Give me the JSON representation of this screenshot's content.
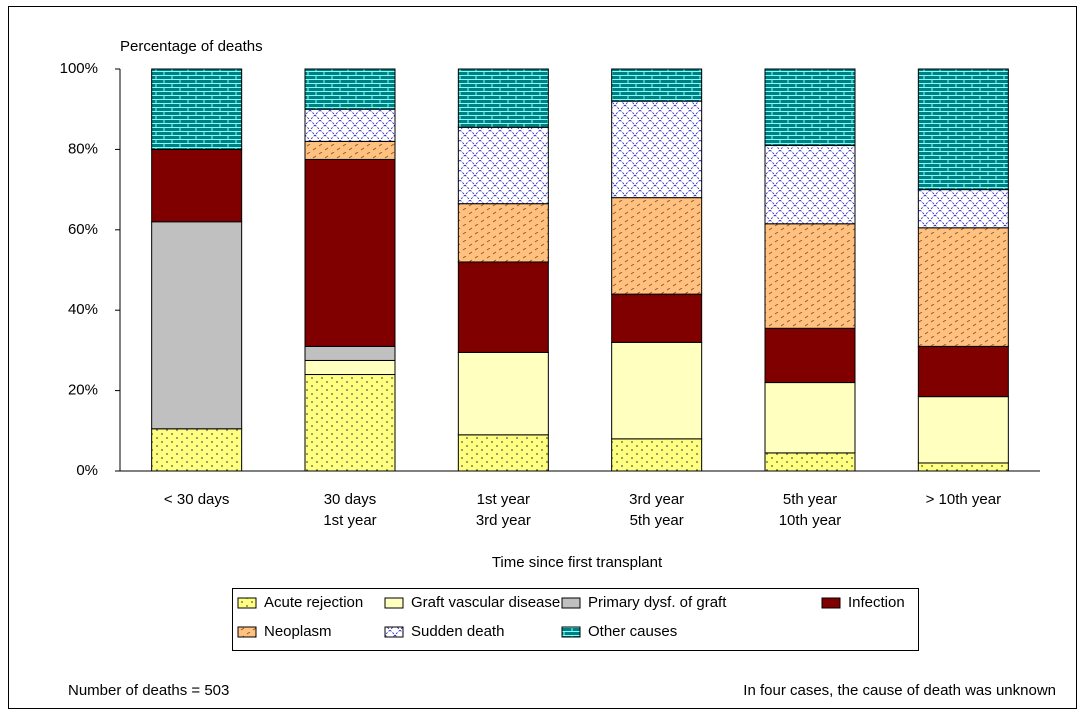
{
  "chart_data": {
    "type": "stacked_bar",
    "y_label": "Percentage of deaths",
    "x_label": "Time since first transplant",
    "categories": [
      [
        "< 30 days"
      ],
      [
        "30 days",
        "1st year"
      ],
      [
        "1st year",
        "3rd year"
      ],
      [
        "3rd year",
        "5th year"
      ],
      [
        "5th year",
        "10th year"
      ],
      [
        "> 10th year"
      ]
    ],
    "series": [
      {
        "name": "Acute rejection",
        "color": "#ffff80",
        "pattern": "dots",
        "values": [
          10.5,
          24,
          9,
          8,
          4.5,
          2
        ]
      },
      {
        "name": "Graft vascular disease",
        "color": "#ffffc0",
        "pattern": "none",
        "values": [
          0,
          3.5,
          20.5,
          24,
          17.5,
          16.5
        ]
      },
      {
        "name": "Primary dysf. of graft",
        "color": "#c0c0c0",
        "pattern": "none",
        "values": [
          51.5,
          3.5,
          0,
          0,
          0,
          0
        ]
      },
      {
        "name": "Infection",
        "color": "#800000",
        "pattern": "none",
        "values": [
          18,
          46.5,
          22.5,
          12,
          13.5,
          12.5
        ]
      },
      {
        "name": "Neoplasm",
        "color": "#ffc080",
        "pattern": "dashes",
        "values": [
          0,
          4.5,
          14.5,
          24,
          26,
          29.5
        ]
      },
      {
        "name": "Sudden death",
        "color": "#ffffff",
        "pattern": "crosshatch",
        "values": [
          0,
          8,
          19,
          24,
          19.5,
          9.5
        ]
      },
      {
        "name": "Other causes",
        "color": "#008080",
        "pattern": "bricks",
        "values": [
          20,
          10,
          14.5,
          8,
          19,
          30
        ]
      }
    ],
    "ylim": [
      0,
      100
    ],
    "yticks": [
      {
        "value": 0,
        "label": "0%"
      },
      {
        "value": 20,
        "label": "20%"
      },
      {
        "value": 40,
        "label": "40%"
      },
      {
        "value": 60,
        "label": "60%"
      },
      {
        "value": 80,
        "label": "80%"
      },
      {
        "value": 100,
        "label": "100%"
      }
    ],
    "grid": false,
    "notes": [
      "Number of deaths = 503",
      "In four cases, the cause of death was unknown"
    ]
  }
}
